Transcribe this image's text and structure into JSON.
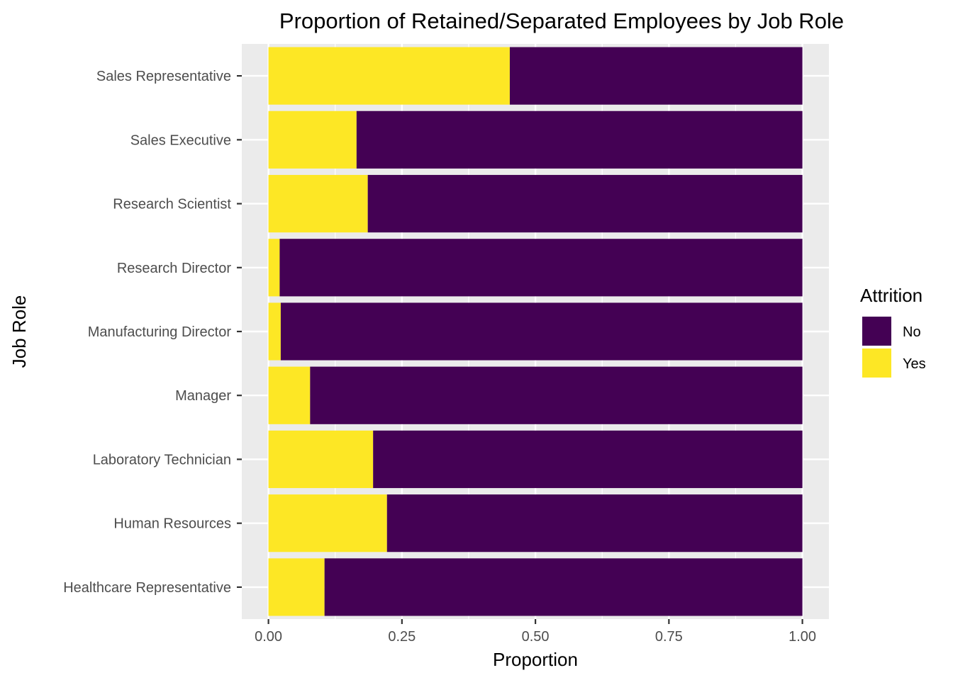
{
  "chart_data": {
    "type": "bar",
    "orientation": "horizontal",
    "stacked": true,
    "title": "Proportion of Retained/Separated Employees by Job Role",
    "xlabel": "Proportion",
    "ylabel": "Job Role",
    "xlim": [
      0,
      1
    ],
    "xticks": [
      {
        "value": 0,
        "label": "0.00"
      },
      {
        "value": 0.25,
        "label": "0.25"
      },
      {
        "value": 0.5,
        "label": "0.50"
      },
      {
        "value": 0.75,
        "label": "0.75"
      },
      {
        "value": 1,
        "label": "1.00"
      }
    ],
    "categories": [
      "Healthcare Representative",
      "Human Resources",
      "Laboratory Technician",
      "Manager",
      "Manufacturing Director",
      "Research Director",
      "Research Scientist",
      "Sales Executive",
      "Sales Representative"
    ],
    "series": [
      {
        "name": "Yes",
        "color": "#FDE725",
        "values": [
          0.105,
          0.222,
          0.196,
          0.078,
          0.023,
          0.021,
          0.186,
          0.165,
          0.452
        ]
      },
      {
        "name": "No",
        "color": "#440154",
        "values": [
          0.895,
          0.778,
          0.804,
          0.922,
          0.977,
          0.979,
          0.814,
          0.835,
          0.548
        ]
      }
    ],
    "legend": {
      "title": "Attrition",
      "position": "right",
      "entries": [
        {
          "label": "No",
          "color": "#440154"
        },
        {
          "label": "Yes",
          "color": "#FDE725"
        }
      ]
    },
    "grid": true,
    "panel_background": "#EBEBEB"
  }
}
